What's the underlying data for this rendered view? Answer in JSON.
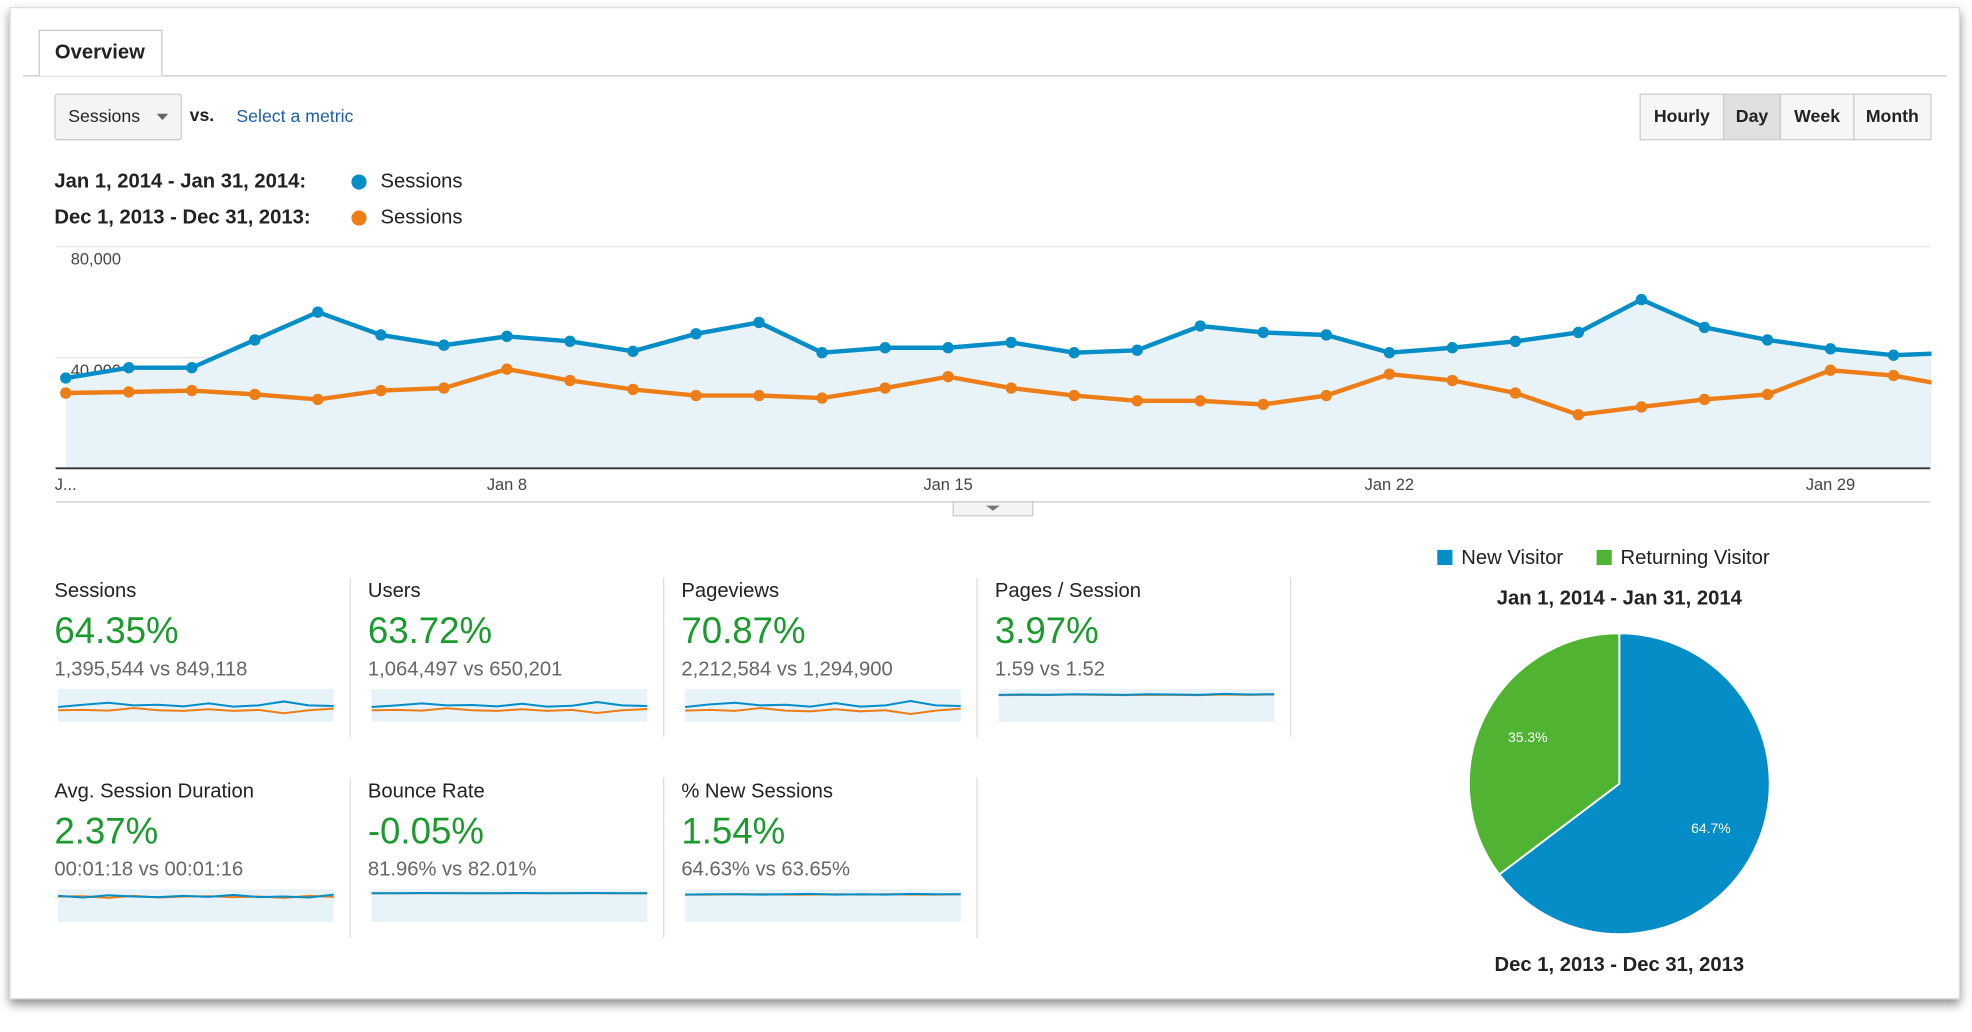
{
  "tab": "Overview",
  "metric_select": "Sessions",
  "vs": "vs.",
  "select_metric": "Select a metric",
  "intervals": [
    "Hourly",
    "Day",
    "Week",
    "Month"
  ],
  "selected_interval": "Day",
  "chart_data": [
    {
      "type": "line",
      "categories": [
        "J...",
        null,
        null,
        null,
        null,
        null,
        null,
        "Jan 8",
        null,
        null,
        null,
        null,
        null,
        null,
        "Jan 15",
        null,
        null,
        null,
        null,
        null,
        null,
        "Jan 22",
        null,
        null,
        null,
        null,
        null,
        null,
        "Jan 29",
        null,
        null
      ],
      "ylim": [
        0,
        80000
      ],
      "yticks": [
        {
          "value": 40000,
          "label": "40,000"
        },
        {
          "value": 80000,
          "label": "80,000"
        }
      ],
      "grid": true,
      "series": [
        {
          "period": "Jan 1, 2014 - Jan 31, 2014:",
          "name": "Sessions",
          "color": "#058dc7",
          "area": true,
          "values": [
            32700,
            36400,
            36400,
            46400,
            56400,
            48200,
            44500,
            47700,
            45900,
            42300,
            48600,
            52700,
            41800,
            43600,
            43600,
            45500,
            41800,
            42700,
            51400,
            49100,
            48200,
            41800,
            43600,
            45900,
            49100,
            60900,
            50900,
            46400,
            43200,
            40900,
            41800
          ]
        },
        {
          "period": "Dec 1, 2013 - Dec 31, 2013:",
          "name": "Sessions",
          "color": "#ed7e17",
          "values": [
            27300,
            27700,
            28200,
            26800,
            25000,
            28200,
            29100,
            35900,
            31800,
            28600,
            26400,
            26400,
            25500,
            29100,
            33200,
            29100,
            26400,
            24500,
            24500,
            23200,
            26400,
            34100,
            31800,
            27300,
            19500,
            22300,
            25000,
            26800,
            35500,
            33600,
            29500
          ]
        }
      ]
    },
    {
      "type": "pie",
      "title": "Jan 1, 2014 - Jan 31, 2014",
      "subtitle": "Dec 1, 2013 - Dec 31, 2013",
      "categories": [
        "New Visitor",
        "Returning Visitor"
      ],
      "values": [
        64.7,
        35.3
      ],
      "value_labels": [
        "64.7%",
        "35.3%"
      ],
      "colors": [
        "#058dc7",
        "#50b432"
      ]
    }
  ],
  "scorecards": [
    {
      "label": "Sessions",
      "change": "64.35%",
      "detail": "1,395,544 vs 849,118",
      "sparkline": {
        "ylim": [
          0,
          100
        ],
        "series": [
          {
            "color": "#058dc7",
            "values": [
              45,
              52,
              58,
              50,
              52,
              47,
              56,
              46,
              50,
              62,
              50,
              48
            ]
          },
          {
            "color": "#ed7e17",
            "values": [
              35,
              36,
              34,
              42,
              35,
              33,
              38,
              33,
              36,
              26,
              35,
              40
            ]
          }
        ]
      }
    },
    {
      "label": "Users",
      "change": "63.72%",
      "detail": "1,064,497 vs 650,201",
      "sparkline": {
        "ylim": [
          0,
          100
        ],
        "series": [
          {
            "color": "#058dc7",
            "values": [
              45,
              50,
              56,
              50,
              51,
              47,
              55,
              46,
              49,
              60,
              50,
              48
            ]
          },
          {
            "color": "#ed7e17",
            "values": [
              35,
              36,
              34,
              41,
              35,
              33,
              38,
              33,
              36,
              27,
              35,
              39
            ]
          }
        ]
      }
    },
    {
      "label": "Pageviews",
      "change": "70.87%",
      "detail": "2,212,584 vs 1,294,900",
      "sparkline": {
        "ylim": [
          0,
          100
        ],
        "series": [
          {
            "color": "#058dc7",
            "values": [
              45,
              53,
              58,
              50,
              52,
              46,
              57,
              46,
              50,
              63,
              50,
              48
            ]
          },
          {
            "color": "#ed7e17",
            "values": [
              34,
              36,
              33,
              42,
              34,
              32,
              38,
              32,
              35,
              24,
              34,
              40
            ]
          }
        ]
      }
    },
    {
      "label": "Pages / Session",
      "change": "3.97%",
      "detail": "1.59 vs 1.52",
      "sparkline": {
        "ylim": [
          0,
          100
        ],
        "series": [
          {
            "color": "#058dc7",
            "values": [
              82,
              83,
              82,
              84,
              83,
              82,
              84,
              83,
              82,
              85,
              83,
              84
            ]
          },
          {
            "color": "#ed7e17",
            "values": [
              81,
              82,
              82,
              83,
              82,
              81,
              82,
              82,
              81,
              83,
              82,
              83
            ]
          }
        ]
      }
    },
    {
      "label": "Avg. Session Duration",
      "change": "2.37%",
      "detail": "00:01:18 vs 00:01:16",
      "sparkline": {
        "ylim": [
          0,
          100
        ],
        "series": [
          {
            "color": "#058dc7",
            "values": [
              80,
              75,
              82,
              78,
              76,
              80,
              77,
              83,
              76,
              78,
              75,
              84
            ]
          },
          {
            "color": "#ed7e17",
            "values": [
              78,
              79,
              74,
              80,
              75,
              78,
              79,
              76,
              78,
              74,
              80,
              77
            ]
          }
        ]
      }
    },
    {
      "label": "Bounce Rate",
      "change": "-0.05%",
      "detail": "81.96% vs 82.01%",
      "sparkline": {
        "ylim": [
          0,
          100
        ],
        "series": [
          {
            "color": "#058dc7",
            "values": [
              88,
              88,
              89,
              88,
              88,
              88,
              89,
              88,
              88,
              89,
              88,
              88
            ]
          },
          {
            "color": "#ed7e17",
            "values": [
              88,
              88,
              88,
              89,
              88,
              88,
              88,
              88,
              89,
              88,
              88,
              88
            ]
          }
        ]
      }
    },
    {
      "label": "% New Sessions",
      "change": "1.54%",
      "detail": "64.63% vs 63.65%",
      "sparkline": {
        "ylim": [
          0,
          100
        ],
        "series": [
          {
            "color": "#058dc7",
            "values": [
              84,
              85,
              85,
              84,
              85,
              86,
              84,
              85,
              84,
              86,
              85,
              85
            ]
          },
          {
            "color": "#ed7e17",
            "values": [
              84,
              84,
              85,
              85,
              84,
              84,
              85,
              84,
              85,
              84,
              84,
              85
            ]
          }
        ]
      }
    }
  ]
}
